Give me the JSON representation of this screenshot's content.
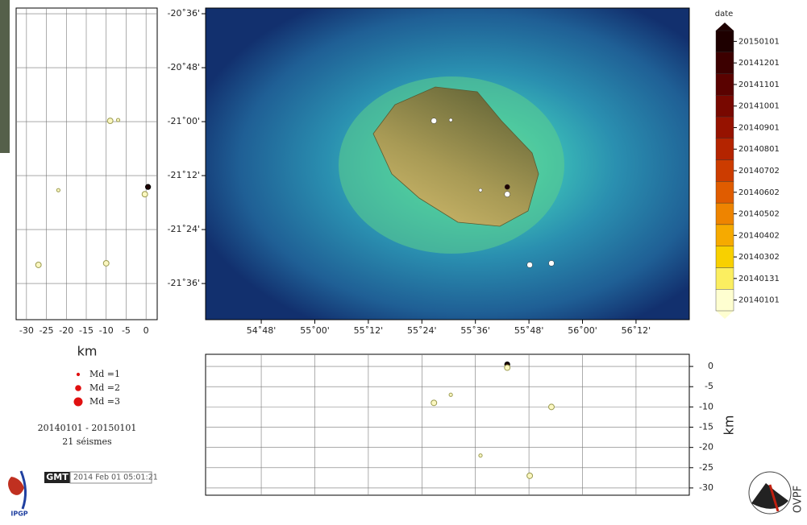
{
  "map": {
    "lonlim": [
      54.592,
      56.399
    ],
    "latlim": [
      -20.579,
      -21.734
    ],
    "lonticks": [
      {
        "value": 54.8,
        "label": "54˚48'"
      },
      {
        "value": 55.0,
        "label": "55˚00'"
      },
      {
        "value": 55.2,
        "label": "55˚12'"
      },
      {
        "value": 55.4,
        "label": "55˚24'"
      },
      {
        "value": 55.6,
        "label": "55˚36'"
      },
      {
        "value": 55.8,
        "label": "55˚48'"
      },
      {
        "value": 56.0,
        "label": "56˚00'"
      },
      {
        "value": 56.2,
        "label": "56˚12'"
      }
    ],
    "latticks": [
      {
        "value": -20.6,
        "label": "-20˚36'"
      },
      {
        "value": -20.8,
        "label": "-20˚48'"
      },
      {
        "value": -21.0,
        "label": "-21˚00'"
      },
      {
        "value": -21.2,
        "label": "-21˚12'"
      },
      {
        "value": -21.4,
        "label": "-21˚24'"
      },
      {
        "value": -21.6,
        "label": "-21˚36'"
      }
    ]
  },
  "depth_lat_panel": {
    "depthlim": [
      -32.6,
      2.8
    ],
    "depthticks": [
      -30,
      -25,
      -20,
      -15,
      -10,
      -5,
      0
    ],
    "axis_label": "km"
  },
  "depth_lon_panel": {
    "depthlim": [
      3,
      -31.8
    ],
    "depthticks": [
      0,
      -5,
      -10,
      -15,
      -20,
      -25,
      -30
    ],
    "axis_label": "km"
  },
  "colorbar": {
    "title": "date",
    "labels": [
      "20150101",
      "20141201",
      "20141101",
      "20141001",
      "20140901",
      "20140801",
      "20140702",
      "20140602",
      "20140502",
      "20140402",
      "20140302",
      "20140131",
      "20140101"
    ],
    "colors": [
      "#1e0000",
      "#3c0000",
      "#5a0200",
      "#780800",
      "#961200",
      "#b42400",
      "#cc3c00",
      "#e05c00",
      "#ee8400",
      "#f6aa00",
      "#f8d000",
      "#fbee60",
      "#fefed0"
    ]
  },
  "events": [
    {
      "lon": 55.445,
      "lat": -20.997,
      "depth": -9,
      "md": 1.8,
      "color": "#fbf7c0"
    },
    {
      "lon": 55.508,
      "lat": -20.994,
      "depth": -7,
      "md": 1,
      "color": "#fbf7c0"
    },
    {
      "lon": 55.619,
      "lat": -21.254,
      "depth": -22,
      "md": 1,
      "color": "#fbf7c0"
    },
    {
      "lon": 55.719,
      "lat": -21.242,
      "depth": 0.5,
      "md": 1.6,
      "color": "#1e0000"
    },
    {
      "lon": 55.719,
      "lat": -21.269,
      "depth": -0.3,
      "md": 1.8,
      "color": "#fbf7c0"
    },
    {
      "lon": 55.884,
      "lat": -21.525,
      "depth": -10,
      "md": 1.8,
      "color": "#fbf7c0"
    },
    {
      "lon": 55.803,
      "lat": -21.531,
      "depth": -27,
      "md": 1.8,
      "color": "#fbf7c0"
    }
  ],
  "legend": {
    "entries": [
      {
        "label": "Md =1",
        "md": 1
      },
      {
        "label": "Md =2",
        "md": 2
      },
      {
        "label": "Md =3",
        "md": 3
      }
    ],
    "period": "20140101 - 20150101",
    "count": "21  séismes"
  },
  "footer": {
    "gmt_logo": "GMT",
    "timestamp": "2014 Feb 01 05:01:21",
    "logo_left": "IPGP",
    "logo_right": "OVPF"
  }
}
